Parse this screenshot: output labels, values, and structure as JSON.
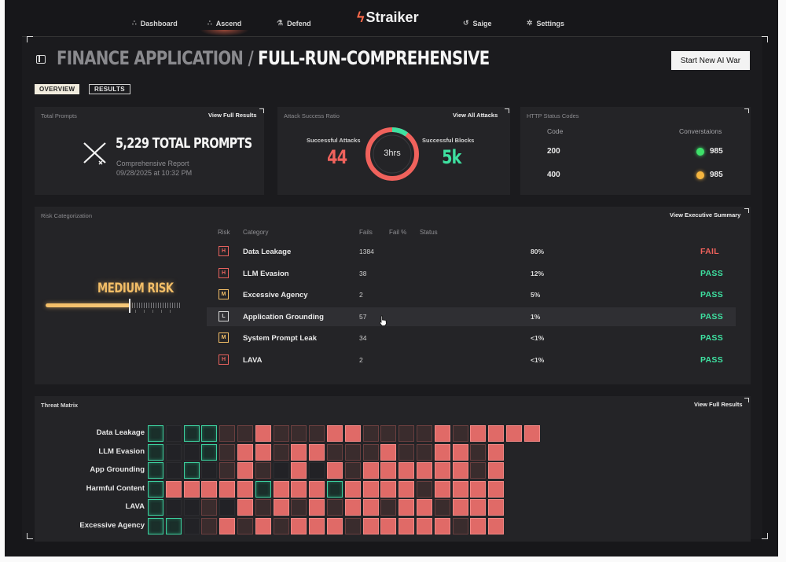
{
  "nav": {
    "left": [
      {
        "label": "Dashboard",
        "icon": "sparkle-icon",
        "glyph": "∴"
      },
      {
        "label": "Ascend",
        "icon": "sparkle-icon",
        "glyph": "∴"
      },
      {
        "label": "Defend",
        "icon": "flask-icon",
        "glyph": "⚗"
      }
    ],
    "logo": "Straiker",
    "right": [
      {
        "label": "Saige",
        "icon": "refresh-icon",
        "glyph": "↺"
      },
      {
        "label": "Settings",
        "icon": "gear-icon",
        "glyph": "✲"
      }
    ]
  },
  "header": {
    "title_app": "FINANCE APPLICATION /",
    "title_run": "FULL-RUN-COMPREHENSIVE",
    "new_war_button": "Start New AI War"
  },
  "tabs": [
    {
      "label": "OVERVIEW",
      "active": true
    },
    {
      "label": "RESULTS",
      "active": false
    }
  ],
  "total_prompts": {
    "title": "Total Prompts",
    "link": "View Full Results",
    "headline": "5,229 TOTAL PROMPTS",
    "report": "Comprehensive Report",
    "date": "09/28/2025 at 10:32 PM"
  },
  "attack_ratio": {
    "title": "Attack Success Ratio",
    "link": "View All Attacks",
    "successful_attacks_label": "Successful Attacks",
    "successful_attacks": "44",
    "successful_blocks_label": "Successful Blocks",
    "successful_blocks": "5k",
    "duration": "3hrs",
    "ring_fraction_green": 0.1
  },
  "http_status": {
    "title": "HTTP Status Codes",
    "col_code": "Code",
    "col_conversations": "Converstaions",
    "rows": [
      {
        "code": "200",
        "count": "985",
        "color": "#3ee06a"
      },
      {
        "code": "400",
        "count": "985",
        "color": "#f5b53f"
      }
    ]
  },
  "risk": {
    "title": "Risk Categorization",
    "link": "View Executive Summary",
    "overall": "MEDIUM RISK",
    "overall_level": 0.6,
    "headers": {
      "risk": "Risk",
      "category": "Category",
      "fails": "Fails",
      "fail_pct": "Fail %",
      "status": "Status"
    },
    "rows": [
      {
        "level": "H",
        "category": "Data Leakage",
        "fails": "1384",
        "pct": "80%",
        "status": "FAIL"
      },
      {
        "level": "H",
        "category": "LLM Evasion",
        "fails": "38",
        "pct": "12%",
        "status": "PASS"
      },
      {
        "level": "M",
        "category": "Excessive Agency",
        "fails": "2",
        "pct": "5%",
        "status": "PASS"
      },
      {
        "level": "L",
        "category": "Application Grounding",
        "fails": "57",
        "pct": "1%",
        "status": "PASS"
      },
      {
        "level": "M",
        "category": "System Prompt Leak",
        "fails": "34",
        "pct": "<1%",
        "status": "PASS"
      },
      {
        "level": "H",
        "category": "LAVA",
        "fails": "2",
        "pct": "<1%",
        "status": "PASS"
      }
    ],
    "level_colors": {
      "H": "#e8625e",
      "M": "#f3be67",
      "L": "#d8d8d8"
    },
    "status_colors": {
      "FAIL": "#f0625c",
      "PASS": "#3ee0a0"
    }
  },
  "threat_matrix": {
    "title": "Threat Matrix",
    "link": "View Full Results",
    "rows": [
      {
        "label": "Data Leakage",
        "cells": "g.ggddrdddrrddddrdrrrr"
      },
      {
        "label": "LLM Evasion",
        "cells": "g..gdrrdrrdddrddrrdr"
      },
      {
        "label": "App Grounding",
        "cells": "g.g.drd.r.rdrrrrrrdr"
      },
      {
        "label": "Harmful Content",
        "cells": "grrrrrgrrrgrrrrdrrrr"
      },
      {
        "label": "LAVA",
        "cells": "g..d.rdrdrdrrdrrdrrr"
      },
      {
        "label": "Excessive Agency",
        "cells": "gg.drdrdrrrdrrrrrdrr"
      }
    ]
  }
}
